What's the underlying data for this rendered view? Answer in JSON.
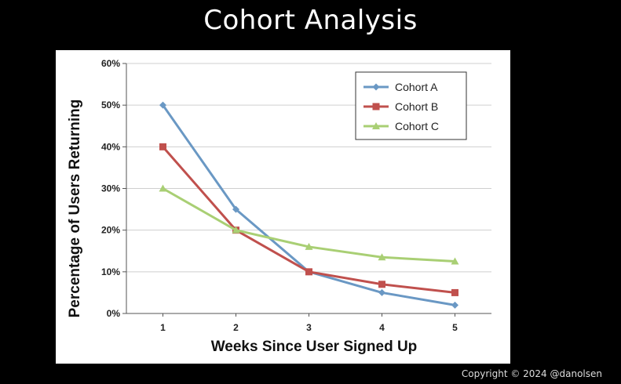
{
  "slide": {
    "title": "Cohort Analysis",
    "copyright": "Copyright © 2024 @danolsen"
  },
  "chart_data": {
    "type": "line",
    "title": "",
    "xlabel": "Weeks Since User Signed Up",
    "ylabel": "Percentage of Users Returning",
    "x": [
      1,
      2,
      3,
      4,
      5
    ],
    "x_tick_labels": [
      "1",
      "2",
      "3",
      "4",
      "5"
    ],
    "ylim": [
      0,
      60
    ],
    "y_ticks": [
      0,
      10,
      20,
      30,
      40,
      50,
      60
    ],
    "y_tick_labels": [
      "0%",
      "10%",
      "20%",
      "30%",
      "40%",
      "50%",
      "60%"
    ],
    "grid": true,
    "legend_position": "top-right",
    "series": [
      {
        "name": "Cohort A",
        "values": [
          50,
          25,
          10,
          5,
          2
        ],
        "color": "#6a98c4",
        "marker": "diamond"
      },
      {
        "name": "Cohort B",
        "values": [
          40,
          20,
          10,
          7,
          5
        ],
        "color": "#c0504d",
        "marker": "square"
      },
      {
        "name": "Cohort C",
        "values": [
          30,
          20,
          16,
          13.5,
          12.5
        ],
        "color": "#a9cf74",
        "marker": "triangle"
      }
    ]
  }
}
